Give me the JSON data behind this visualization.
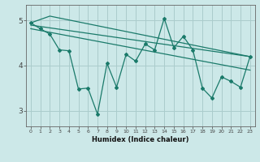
{
  "xlabel": "Humidex (Indice chaleur)",
  "background_color": "#cce8e8",
  "grid_color": "#aacccc",
  "line_color": "#1a7a6a",
  "xlim": [
    -0.5,
    23.5
  ],
  "ylim": [
    2.65,
    5.35
  ],
  "yticks": [
    3,
    4,
    5
  ],
  "xticks": [
    0,
    1,
    2,
    3,
    4,
    5,
    6,
    7,
    8,
    9,
    10,
    11,
    12,
    13,
    14,
    15,
    16,
    17,
    18,
    19,
    20,
    21,
    22,
    23
  ],
  "main_line": {
    "x": [
      0,
      1,
      2,
      3,
      4,
      5,
      6,
      7,
      8,
      9,
      10,
      11,
      12,
      13,
      14,
      15,
      16,
      17,
      18,
      19,
      20,
      21,
      22,
      23
    ],
    "y": [
      4.95,
      4.82,
      4.7,
      4.35,
      4.33,
      3.48,
      3.5,
      2.92,
      4.05,
      3.52,
      4.25,
      4.1,
      4.48,
      4.35,
      5.05,
      4.4,
      4.65,
      4.35,
      3.5,
      3.28,
      3.75,
      3.65,
      3.52,
      4.2
    ]
  },
  "trend_lines": [
    {
      "x": [
        0,
        2,
        23
      ],
      "y": [
        4.95,
        5.1,
        4.2
      ]
    },
    {
      "x": [
        0,
        23
      ],
      "y": [
        4.9,
        4.2
      ]
    },
    {
      "x": [
        0,
        23
      ],
      "y": [
        4.82,
        3.9
      ]
    }
  ]
}
